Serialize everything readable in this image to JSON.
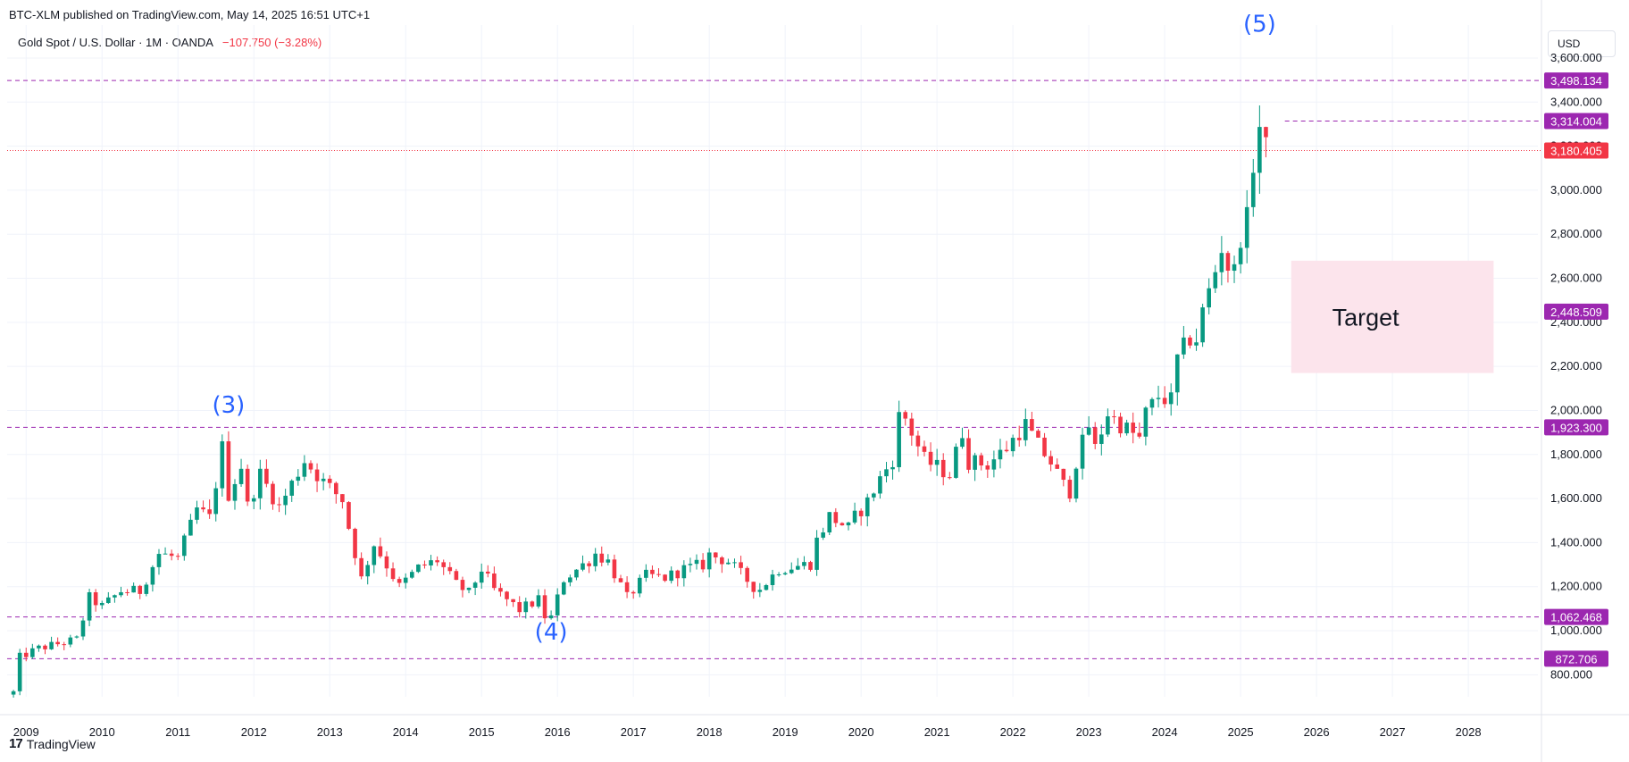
{
  "header": {
    "publish_line": "BTC-XLM published on TradingView.com, May 14, 2025 16:51 UTC+1",
    "symbol": "Gold Spot / U.S. Dollar · 1M · OANDA",
    "change": "−107.750 (−3.28%)",
    "currency": "USD"
  },
  "footer": {
    "brand": "TradingView",
    "logo_icon": "tradingview-logo-icon"
  },
  "colors": {
    "up": "#089981",
    "down": "#f23645",
    "level_line": "#9c27b0",
    "price_tag": "#f23645",
    "wave_label": "#2962ff",
    "target_box": "#fce4ec"
  },
  "chart_data": {
    "type": "candlestick",
    "title": "Gold Spot / U.S. Dollar · 1M · OANDA",
    "interval": "1M",
    "x_ticks": [
      "2009",
      "2010",
      "2011",
      "2012",
      "2013",
      "2014",
      "2015",
      "2016",
      "2017",
      "2018",
      "2019",
      "2020",
      "2021",
      "2022",
      "2023",
      "2024",
      "2025",
      "2026",
      "2027",
      "2028"
    ],
    "y_ticks": [
      "800.000",
      "1,000.000",
      "1,200.000",
      "1,400.000",
      "1,600.000",
      "1,800.000",
      "2,000.000",
      "2,200.000",
      "2,400.000",
      "2,600.000",
      "2,800.000",
      "3,000.000",
      "3,200.000",
      "3,400.000",
      "3,600.000"
    ],
    "ylim": [
      700,
      3750
    ],
    "xlim": [
      "2008-10",
      "2028-12"
    ],
    "axis_labels": {
      "y": "USD"
    },
    "last_price": {
      "value": 3180.405,
      "label": "3,180.405"
    },
    "levels": [
      {
        "value": 3498.134,
        "label": "3,498.134"
      },
      {
        "value": 3314.004,
        "label": "3,314.004",
        "from": "2025-08"
      },
      {
        "value": 2448.509,
        "label": "2,448.509",
        "tag_only": true
      },
      {
        "value": 1923.3,
        "label": "1,923.300"
      },
      {
        "value": 1062.468,
        "label": "1,062.468"
      },
      {
        "value": 872.706,
        "label": "872.706"
      }
    ],
    "annotations": [
      {
        "text": "(3)",
        "x": "2011-09",
        "y": 1990
      },
      {
        "text": "(4)",
        "x": "2015-12",
        "y": 960
      },
      {
        "text": "(5)",
        "x": "2025-04",
        "y": 3720
      }
    ],
    "target_zone": {
      "label": "Target",
      "x_from": "2025-09",
      "x_to": "2028-05",
      "y_from": 2170,
      "y_to": 2680
    },
    "grid": true,
    "anchors": [
      [
        "2008-11",
        720
      ],
      [
        "2008-12",
        880
      ],
      [
        "2009-03",
        920
      ],
      [
        "2009-06",
        940
      ],
      [
        "2009-09",
        960
      ],
      [
        "2009-11",
        1150
      ],
      [
        "2010-01",
        1110
      ],
      [
        "2010-04",
        1180
      ],
      [
        "2010-07",
        1180
      ],
      [
        "2010-10",
        1350
      ],
      [
        "2011-01",
        1330
      ],
      [
        "2011-04",
        1550
      ],
      [
        "2011-06",
        1510
      ],
      [
        "2011-08",
        1830
      ],
      [
        "2011-09",
        1620
      ],
      [
        "2011-11",
        1750
      ],
      [
        "2011-12",
        1565
      ],
      [
        "2012-02",
        1710
      ],
      [
        "2012-05",
        1560
      ],
      [
        "2012-09",
        1775
      ],
      [
        "2012-12",
        1675
      ],
      [
        "2013-03",
        1595
      ],
      [
        "2013-04",
        1470
      ],
      [
        "2013-06",
        1235
      ],
      [
        "2013-08",
        1395
      ],
      [
        "2013-12",
        1200
      ],
      [
        "2014-03",
        1285
      ],
      [
        "2014-06",
        1320
      ],
      [
        "2014-09",
        1210
      ],
      [
        "2014-11",
        1170
      ],
      [
        "2015-01",
        1280
      ],
      [
        "2015-03",
        1185
      ],
      [
        "2015-07",
        1095
      ],
      [
        "2015-10",
        1140
      ],
      [
        "2015-11",
        1065
      ],
      [
        "2015-12",
        1060
      ],
      [
        "2016-02",
        1235
      ],
      [
        "2016-06",
        1320
      ],
      [
        "2016-07",
        1350
      ],
      [
        "2016-09",
        1315
      ],
      [
        "2016-12",
        1150
      ],
      [
        "2017-03",
        1250
      ],
      [
        "2017-06",
        1240
      ],
      [
        "2017-09",
        1280
      ],
      [
        "2017-12",
        1300
      ],
      [
        "2018-01",
        1345
      ],
      [
        "2018-04",
        1315
      ],
      [
        "2018-08",
        1200
      ],
      [
        "2018-09",
        1190
      ],
      [
        "2018-12",
        1280
      ],
      [
        "2019-05",
        1305
      ],
      [
        "2019-06",
        1410
      ],
      [
        "2019-08",
        1520
      ],
      [
        "2019-11",
        1465
      ],
      [
        "2019-12",
        1515
      ],
      [
        "2020-02",
        1585
      ],
      [
        "2020-04",
        1690
      ],
      [
        "2020-06",
        1780
      ],
      [
        "2020-07",
        1970
      ],
      [
        "2020-08",
        1965
      ],
      [
        "2020-11",
        1775
      ],
      [
        "2021-03",
        1710
      ],
      [
        "2021-05",
        1905
      ],
      [
        "2021-06",
        1770
      ],
      [
        "2021-09",
        1755
      ],
      [
        "2021-12",
        1830
      ],
      [
        "2022-02",
        1905
      ],
      [
        "2022-03",
        1935
      ],
      [
        "2022-05",
        1840
      ],
      [
        "2022-07",
        1765
      ],
      [
        "2022-09",
        1660
      ],
      [
        "2022-10",
        1635
      ],
      [
        "2022-11",
        1770
      ],
      [
        "2023-01",
        1930
      ],
      [
        "2023-02",
        1825
      ],
      [
        "2023-04",
        1990
      ],
      [
        "2023-05",
        1960
      ],
      [
        "2023-09",
        1870
      ],
      [
        "2023-10",
        1985
      ],
      [
        "2023-12",
        2065
      ],
      [
        "2024-02",
        2045
      ],
      [
        "2024-03",
        2230
      ],
      [
        "2024-05",
        2330
      ],
      [
        "2024-06",
        2325
      ],
      [
        "2024-07",
        2445
      ],
      [
        "2024-09",
        2635
      ],
      [
        "2024-10",
        2745
      ],
      [
        "2024-11",
        2655
      ],
      [
        "2024-12",
        2625
      ],
      [
        "2025-01",
        2800
      ],
      [
        "2025-02",
        2860
      ],
      [
        "2025-03",
        3125
      ],
      [
        "2025-04",
        3290
      ],
      [
        "2025-05",
        3180
      ]
    ]
  }
}
